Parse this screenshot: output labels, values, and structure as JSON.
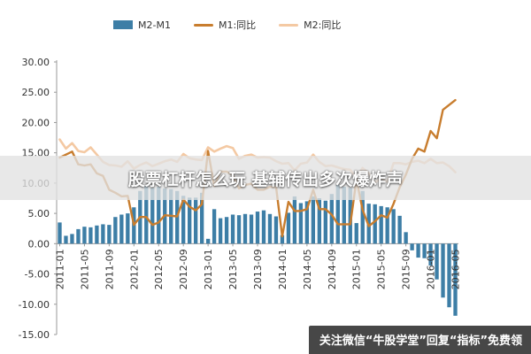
{
  "chart_data": {
    "type": "bar",
    "title": "",
    "xlabel": "",
    "ylabel": "",
    "ylim": [
      -15,
      30
    ],
    "yticks": [
      "30.00",
      "25.00",
      "20.00",
      "15.00",
      "10.00",
      "5.00",
      "0.00",
      "-5.00",
      "-10.00",
      "-15.00"
    ],
    "yticks_values": [
      30,
      25,
      20,
      15,
      10,
      5,
      0,
      -5,
      -10,
      -15
    ],
    "xticks": [
      "2011-01",
      "2011-05",
      "2011-09",
      "2012-01",
      "2012-05",
      "2012-09",
      "2013-01",
      "2013-05",
      "2013-09",
      "2014-01",
      "2014-05",
      "2014-09",
      "2015-01",
      "2015-05",
      "2015-09",
      "2016-01",
      "2016-05"
    ],
    "categories": [
      "2011-01",
      "2011-02",
      "2011-03",
      "2011-04",
      "2011-05",
      "2011-06",
      "2011-07",
      "2011-08",
      "2011-09",
      "2011-10",
      "2011-11",
      "2011-12",
      "2012-01",
      "2012-02",
      "2012-03",
      "2012-04",
      "2012-05",
      "2012-06",
      "2012-07",
      "2012-08",
      "2012-09",
      "2012-10",
      "2012-11",
      "2012-12",
      "2013-01",
      "2013-02",
      "2013-03",
      "2013-04",
      "2013-05",
      "2013-06",
      "2013-07",
      "2013-08",
      "2013-09",
      "2013-10",
      "2013-11",
      "2013-12",
      "2014-01",
      "2014-02",
      "2014-03",
      "2014-04",
      "2014-05",
      "2014-06",
      "2014-07",
      "2014-08",
      "2014-09",
      "2014-10",
      "2014-11",
      "2014-12",
      "2015-01",
      "2015-02",
      "2015-03",
      "2015-04",
      "2015-05",
      "2015-06",
      "2015-07",
      "2015-08",
      "2015-09",
      "2015-10",
      "2015-11",
      "2015-12",
      "2016-01",
      "2016-02",
      "2016-03",
      "2016-04",
      "2016-05"
    ],
    "series": [
      {
        "name": "M2-M1",
        "type": "bar",
        "color": "#3d7ea6",
        "values": [
          3.5,
          1.3,
          1.6,
          2.4,
          2.8,
          2.7,
          3.0,
          3.2,
          3.1,
          4.4,
          4.8,
          5.0,
          6.0,
          8.7,
          9.5,
          9.2,
          9.4,
          9.1,
          9.0,
          8.7,
          7.9,
          7.6,
          7.6,
          8.4,
          0.8,
          5.7,
          4.2,
          4.4,
          4.8,
          4.7,
          4.9,
          4.8,
          5.3,
          5.5,
          4.9,
          4.5,
          1.4,
          5.1,
          7.8,
          6.7,
          7.0,
          7.8,
          7.5,
          7.1,
          8.2,
          9.7,
          9.4,
          9.2,
          3.4,
          8.7,
          6.6,
          6.5,
          6.2,
          6.0,
          5.7,
          4.6,
          1.9,
          -1.1,
          -2.3,
          -2.4,
          -3.6,
          -5.9,
          -8.9,
          -10.5,
          -11.9
        ]
      },
      {
        "name": "M1:同比",
        "type": "line",
        "color": "#c87d2e",
        "values": [
          14.2,
          14.7,
          15.2,
          13.1,
          12.9,
          13.1,
          11.6,
          11.2,
          8.9,
          8.4,
          7.8,
          7.9,
          3.1,
          4.4,
          4.4,
          3.1,
          3.5,
          4.7,
          4.6,
          4.5,
          7.3,
          6.1,
          5.5,
          6.5,
          15.3,
          9.5,
          11.9,
          11.9,
          11.3,
          9.1,
          9.7,
          9.9,
          8.9,
          8.9,
          9.4,
          9.3,
          1.2,
          6.9,
          5.4,
          5.4,
          5.7,
          8.9,
          5.7,
          5.7,
          4.8,
          3.2,
          3.2,
          3.2,
          10.6,
          5.6,
          2.9,
          3.7,
          4.7,
          4.3,
          6.6,
          9.3,
          11.4,
          14.0,
          15.7,
          15.2,
          18.6,
          17.4,
          22.1,
          22.9,
          23.7
        ]
      },
      {
        "name": "M2:同比",
        "type": "line",
        "color": "#f4c9a3",
        "values": [
          17.2,
          15.7,
          16.6,
          15.3,
          15.1,
          15.9,
          14.7,
          13.5,
          13.0,
          12.9,
          12.7,
          13.6,
          12.4,
          13.0,
          13.4,
          12.8,
          13.2,
          13.6,
          13.9,
          13.5,
          14.8,
          14.1,
          13.9,
          13.8,
          15.9,
          15.2,
          15.7,
          16.1,
          15.8,
          14.0,
          14.5,
          14.7,
          14.2,
          14.3,
          14.2,
          13.6,
          13.2,
          13.3,
          12.1,
          13.2,
          13.4,
          14.7,
          13.5,
          12.8,
          12.9,
          12.6,
          12.3,
          12.2,
          10.8,
          12.5,
          11.6,
          10.1,
          10.8,
          10.2,
          13.3,
          13.3,
          13.1,
          13.5,
          13.7,
          13.3,
          14.0,
          13.3,
          13.4,
          12.8,
          11.8
        ]
      }
    ],
    "legend": "top",
    "grid": false
  },
  "overlay": {
    "banner_title": "股票杠杆怎么玩 基辅传出多次爆炸声",
    "watermark": "关注微信“牛股学堂”回复“指标”免费领"
  }
}
